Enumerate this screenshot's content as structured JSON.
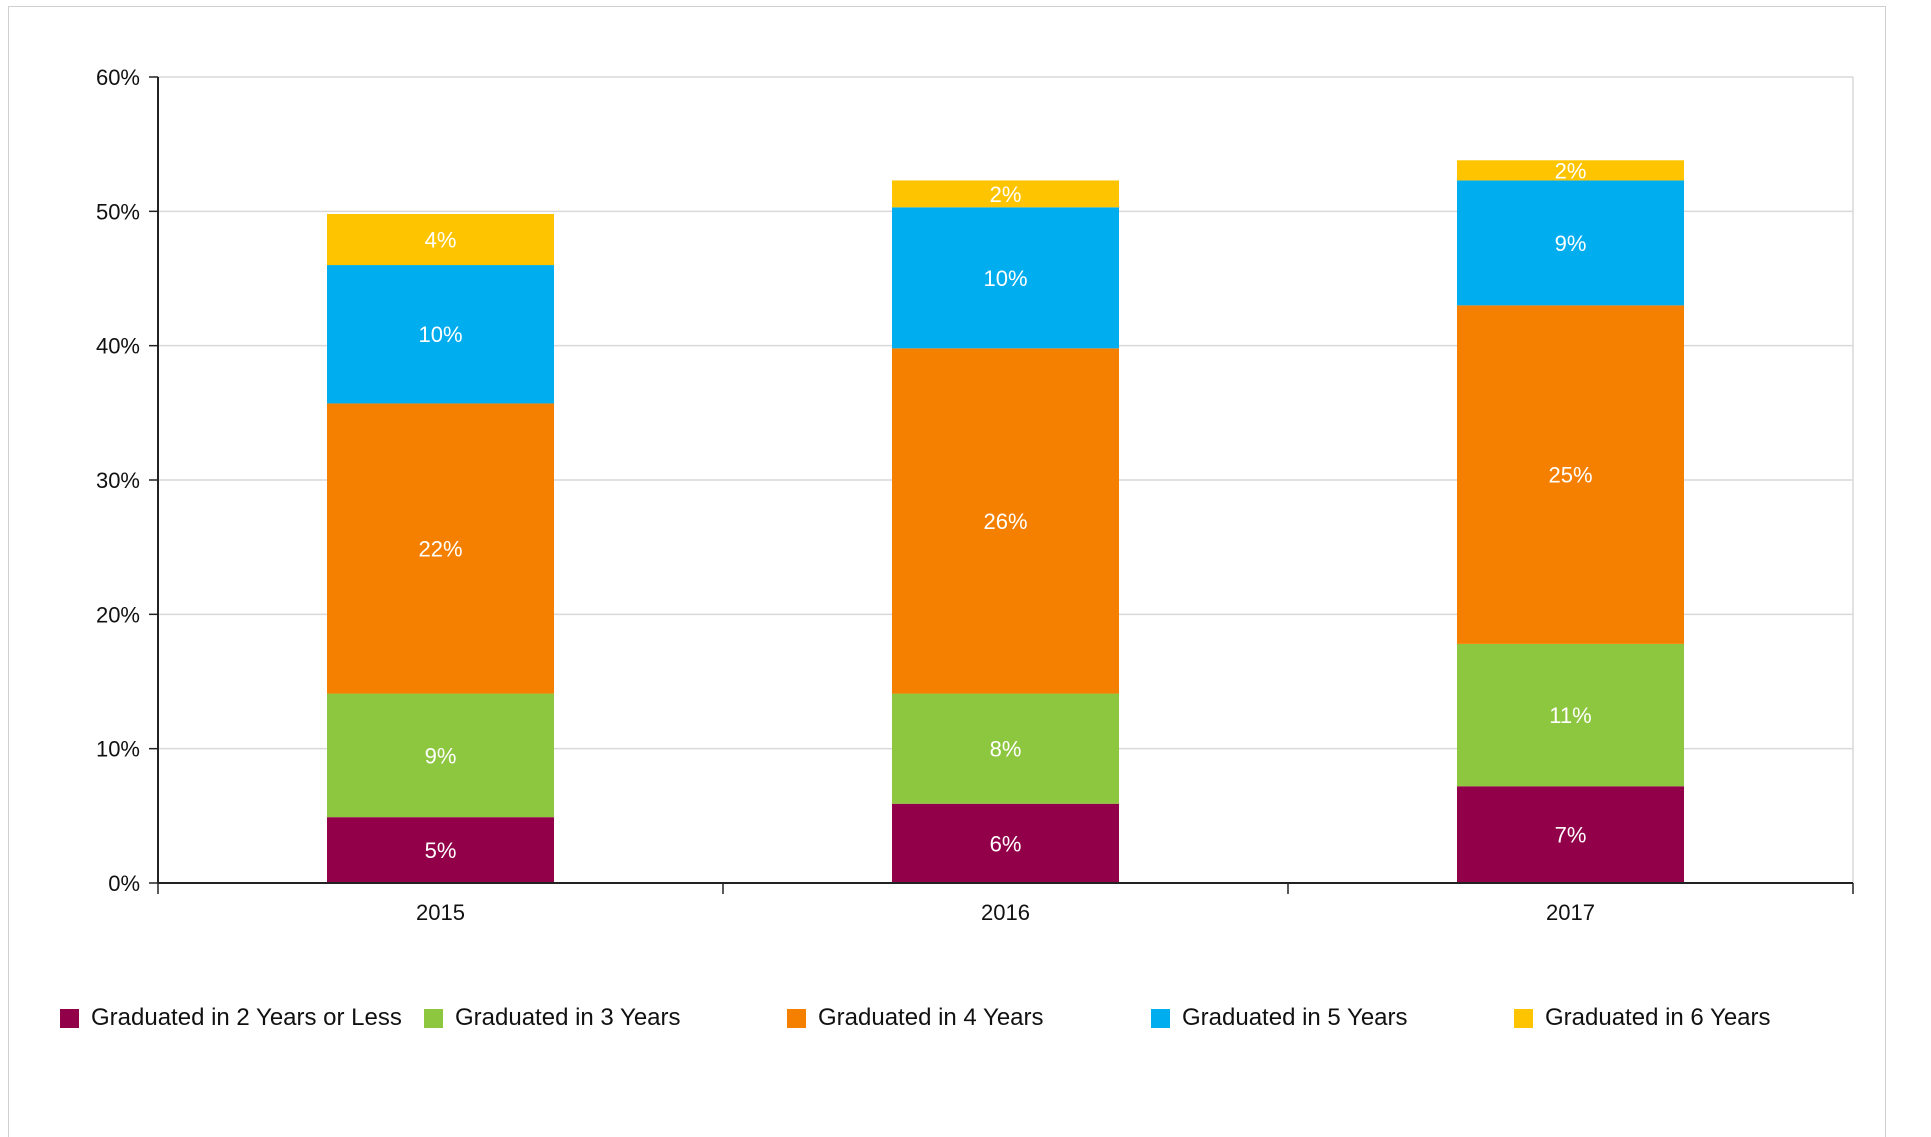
{
  "chart_data": {
    "type": "bar",
    "stacked": true,
    "categories": [
      "2015",
      "2016",
      "2017"
    ],
    "series": [
      {
        "name": "Graduated in 2 Years or Less",
        "color": "#92004a",
        "values": [
          4.9,
          5.9,
          7.2
        ],
        "labels": [
          "5%",
          "6%",
          "7%"
        ]
      },
      {
        "name": "Graduated in 3 Years",
        "color": "#8dc63f",
        "values": [
          9.2,
          8.2,
          10.6
        ],
        "labels": [
          "9%",
          "8%",
          "11%"
        ]
      },
      {
        "name": "Graduated in 4 Years",
        "color": "#f58000",
        "values": [
          21.6,
          25.7,
          25.2
        ],
        "labels": [
          "22%",
          "26%",
          "25%"
        ]
      },
      {
        "name": "Graduated in 5 Years",
        "color": "#00adee",
        "values": [
          10.3,
          10.5,
          9.3
        ],
        "labels": [
          "10%",
          "10%",
          "9%"
        ]
      },
      {
        "name": "Graduated in 6 Years",
        "color": "#ffc400",
        "values": [
          3.8,
          2.0,
          1.5
        ],
        "labels": [
          "4%",
          "2%",
          "2%"
        ]
      }
    ],
    "y_ticks": [
      "0%",
      "10%",
      "20%",
      "30%",
      "40%",
      "50%",
      "60%"
    ],
    "ylim": [
      0,
      60
    ],
    "grid": true,
    "legend_position": "bottom"
  }
}
